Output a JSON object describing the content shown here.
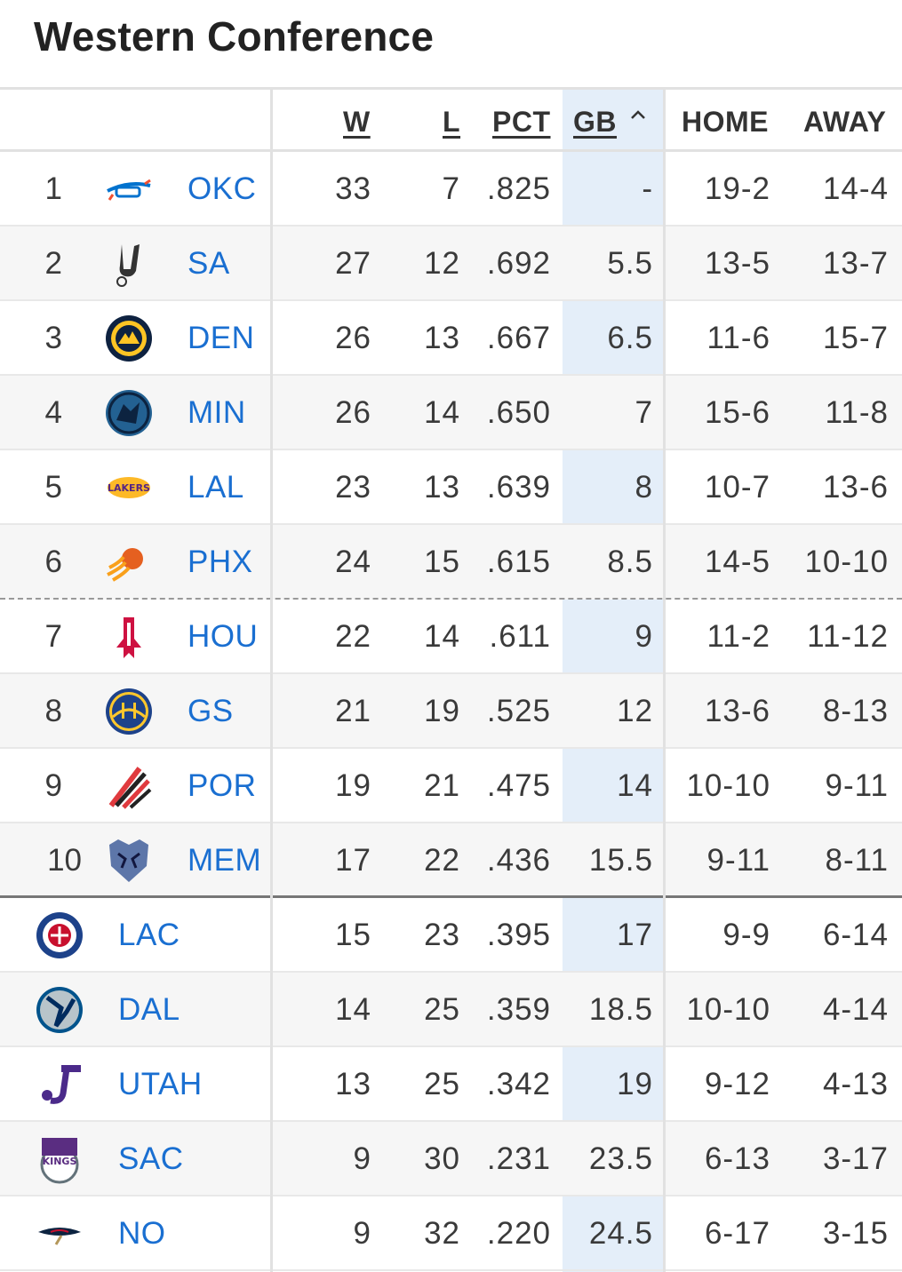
{
  "title": "Western Conference",
  "headers": {
    "w": "W",
    "l": "L",
    "pct": "PCT",
    "gb": "GB",
    "home": "HOME",
    "away": "AWAY"
  },
  "rows": [
    {
      "rank": "1",
      "team": "OKC",
      "icon": "thunder-logo-icon",
      "w": "33",
      "l": "7",
      "pct": ".825",
      "gb": "-",
      "home": "19-2",
      "away": "14-4"
    },
    {
      "rank": "2",
      "team": "SA",
      "icon": "spurs-logo-icon",
      "w": "27",
      "l": "12",
      "pct": ".692",
      "gb": "5.5",
      "home": "13-5",
      "away": "13-7"
    },
    {
      "rank": "3",
      "team": "DEN",
      "icon": "nuggets-logo-icon",
      "w": "26",
      "l": "13",
      "pct": ".667",
      "gb": "6.5",
      "home": "11-6",
      "away": "15-7"
    },
    {
      "rank": "4",
      "team": "MIN",
      "icon": "timberwolves-logo-icon",
      "w": "26",
      "l": "14",
      "pct": ".650",
      "gb": "7",
      "home": "15-6",
      "away": "11-8"
    },
    {
      "rank": "5",
      "team": "LAL",
      "icon": "lakers-logo-icon",
      "w": "23",
      "l": "13",
      "pct": ".639",
      "gb": "8",
      "home": "10-7",
      "away": "13-6"
    },
    {
      "rank": "6",
      "team": "PHX",
      "icon": "suns-logo-icon",
      "w": "24",
      "l": "15",
      "pct": ".615",
      "gb": "8.5",
      "home": "14-5",
      "away": "10-10"
    },
    {
      "rank": "7",
      "team": "HOU",
      "icon": "rockets-logo-icon",
      "w": "22",
      "l": "14",
      "pct": ".611",
      "gb": "9",
      "home": "11-2",
      "away": "11-12"
    },
    {
      "rank": "8",
      "team": "GS",
      "icon": "warriors-logo-icon",
      "w": "21",
      "l": "19",
      "pct": ".525",
      "gb": "12",
      "home": "13-6",
      "away": "8-13"
    },
    {
      "rank": "9",
      "team": "POR",
      "icon": "blazers-logo-icon",
      "w": "19",
      "l": "21",
      "pct": ".475",
      "gb": "14",
      "home": "10-10",
      "away": "9-11"
    },
    {
      "rank": "10",
      "team": "MEM",
      "icon": "grizzlies-logo-icon",
      "w": "17",
      "l": "22",
      "pct": ".436",
      "gb": "15.5",
      "home": "9-11",
      "away": "8-11"
    },
    {
      "rank": "",
      "team": "LAC",
      "icon": "clippers-logo-icon",
      "w": "15",
      "l": "23",
      "pct": ".395",
      "gb": "17",
      "home": "9-9",
      "away": "6-14"
    },
    {
      "rank": "",
      "team": "DAL",
      "icon": "mavericks-logo-icon",
      "w": "14",
      "l": "25",
      "pct": ".359",
      "gb": "18.5",
      "home": "10-10",
      "away": "4-14"
    },
    {
      "rank": "",
      "team": "UTAH",
      "icon": "jazz-logo-icon",
      "w": "13",
      "l": "25",
      "pct": ".342",
      "gb": "19",
      "home": "9-12",
      "away": "4-13"
    },
    {
      "rank": "",
      "team": "SAC",
      "icon": "kings-logo-icon",
      "w": "9",
      "l": "30",
      "pct": ".231",
      "gb": "23.5",
      "home": "6-13",
      "away": "3-17"
    },
    {
      "rank": "",
      "team": "NO",
      "icon": "pelicans-logo-icon",
      "w": "9",
      "l": "32",
      "pct": ".220",
      "gb": "24.5",
      "home": "6-17",
      "away": "3-15"
    }
  ]
}
